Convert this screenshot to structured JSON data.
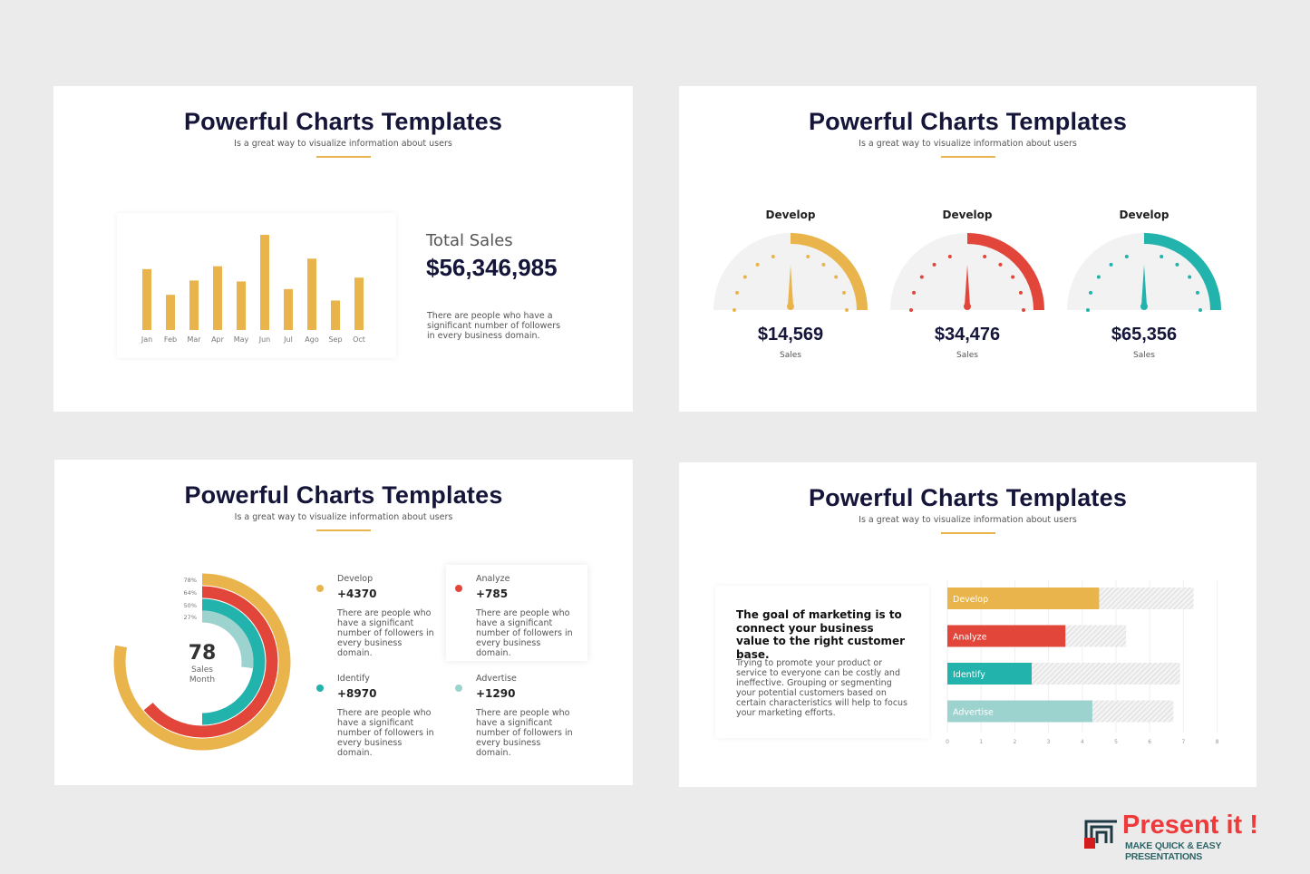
{
  "header": {
    "title": "Powerful Charts Templates",
    "subtitle": "Is a great way to visualize information about users"
  },
  "colors": {
    "yellow": "#e9b44c",
    "red": "#e2463a",
    "teal": "#22b3ad",
    "light_teal": "#9dd3cf",
    "navy": "#15153a"
  },
  "chart_data": [
    {
      "type": "bar",
      "categories": [
        "Jan",
        "Feb",
        "Mar",
        "Apr",
        "May",
        "Jun",
        "Jul",
        "Ago",
        "Sep",
        "Oct"
      ],
      "values": [
        64,
        37,
        52,
        67,
        51,
        100,
        43,
        75,
        31,
        55
      ],
      "title": "",
      "xlabel": "",
      "ylabel": "",
      "grid": false
    },
    {
      "type": "gauge",
      "items": [
        {
          "label": "Develop",
          "value": "$14,569",
          "caption": "Sales",
          "fill": 0.5,
          "color": "#e9b44c"
        },
        {
          "label": "Develop",
          "value": "$34,476",
          "caption": "Sales",
          "fill": 0.5,
          "color": "#e2463a"
        },
        {
          "type": "gauge",
          "label": "Develop",
          "value": "$65,356",
          "caption": "Sales",
          "fill": 0.5,
          "color": "#22b3ad"
        }
      ]
    },
    {
      "type": "radial-bar",
      "series": [
        {
          "label": "78%",
          "value": 78,
          "color": "#e9b44c"
        },
        {
          "label": "64%",
          "value": 64,
          "color": "#e2463a"
        },
        {
          "label": "50%",
          "value": 50,
          "color": "#22b3ad"
        },
        {
          "label": "27%",
          "value": 27,
          "color": "#9dd3cf"
        }
      ],
      "center": {
        "value": "78",
        "line1": "Sales",
        "line2": "Month"
      }
    },
    {
      "type": "bar",
      "orientation": "horizontal",
      "categories": [
        "Develop",
        "Analyze",
        "Identify",
        "Advertise"
      ],
      "values": [
        4.5,
        3.5,
        2.5,
        4.3
      ],
      "totals": [
        7.3,
        5.3,
        6.9,
        6.7
      ],
      "colors": [
        "#e9b44c",
        "#e2463a",
        "#22b3ad",
        "#9dd3cf"
      ],
      "xlim": [
        0,
        8
      ],
      "xticks": [
        "0",
        "1",
        "2",
        "3",
        "4",
        "5",
        "6",
        "7",
        "8"
      ],
      "grid": true
    }
  ],
  "sales": {
    "label": "Total Sales",
    "value": "$56,346,985",
    "desc": "There are people who have a significant number of followers in every business domain."
  },
  "legend": [
    {
      "name": "Develop",
      "value": "+4370",
      "color": "#e9b44c",
      "desc": "There are people who have a significant number of followers in every business domain."
    },
    {
      "name": "Analyze",
      "value": "+785",
      "color": "#e2463a",
      "desc": "There are people who have a significant number of followers in every business domain."
    },
    {
      "name": "Identify",
      "value": "+8970",
      "color": "#22b3ad",
      "desc": "There are people who have a significant number of followers in every business domain."
    },
    {
      "name": "Advertise",
      "value": "+1290",
      "color": "#9dd3cf",
      "desc": "There are people who have a significant number of followers in every business domain."
    }
  ],
  "marketing": {
    "heading": "The goal of marketing is to connect your business value to the right customer base.",
    "body": "Trying to promote your product or service to everyone can be costly and ineffective. Grouping or segmenting your potential customers based on certain characteristics will help to focus your marketing efforts."
  },
  "logo": {
    "name": "Present it !",
    "tagline": "MAKE QUICK & EASY PRESENTATIONS"
  }
}
